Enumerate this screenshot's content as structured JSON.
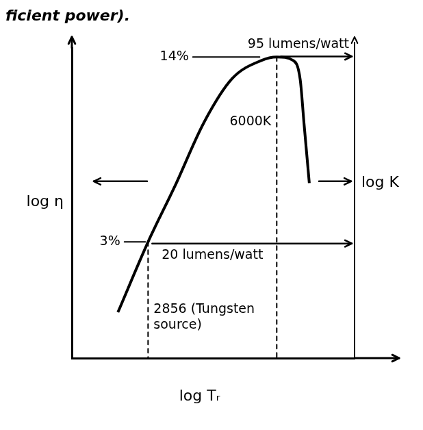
{
  "chart_data": {
    "type": "line",
    "title": "ficient power).",
    "x_label": "log Tᵣ",
    "y_label": "log η",
    "y2_label": "log K",
    "x": [
      2400,
      2856,
      3340,
      3940,
      4640,
      5490,
      6000,
      6600,
      6870,
      7020,
      7240
    ],
    "values": [
      1.67,
      3,
      4.8,
      8.1,
      11.7,
      13.6,
      14,
      13.6,
      11.6,
      8.1,
      4.9
    ],
    "color": "#000000",
    "log": true,
    "grid": false,
    "tick_labels": false,
    "xlim": [
      1840,
      9400
    ],
    "ylim": [
      1.14,
      15.1
    ],
    "y2lim": [
      7.7,
      102
    ],
    "annotations": [
      {
        "x": 2856,
        "y": 3,
        "y2": 20,
        "x_label": "2856 (Tungsten source)",
        "y_label": "3%",
        "y2_label": "20 lumens/watt"
      },
      {
        "x": 6000,
        "y": 14,
        "y2": 95,
        "x_label": "6000K",
        "y_label": "14%",
        "y2_label": "95 lumens/watt"
      }
    ]
  }
}
